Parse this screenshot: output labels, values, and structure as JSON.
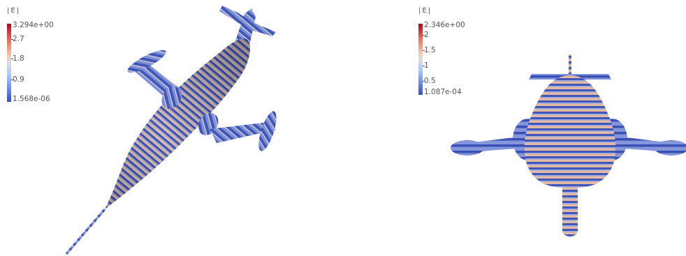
{
  "left_view": {
    "legend": {
      "title": "|E|",
      "max_label": "3.294e+00",
      "tick_labels": [
        "2.7",
        "1.8",
        "0.9"
      ],
      "min_label": "1.568e-06",
      "max_value": 3.294,
      "min_value": 1.568e-06,
      "colormap": [
        "#3b4cc0",
        "#dddddd",
        "#b40426"
      ]
    }
  },
  "right_view": {
    "legend": {
      "title": "|E|",
      "max_label": "2.346e+00",
      "tick_labels": [
        "2",
        "1.5",
        "1",
        "0.5"
      ],
      "min_label": "1.087e-04",
      "max_value": 2.346,
      "min_value": 0.0001087,
      "colormap": [
        "#3b4cc0",
        "#dddddd",
        "#b40426"
      ]
    }
  }
}
